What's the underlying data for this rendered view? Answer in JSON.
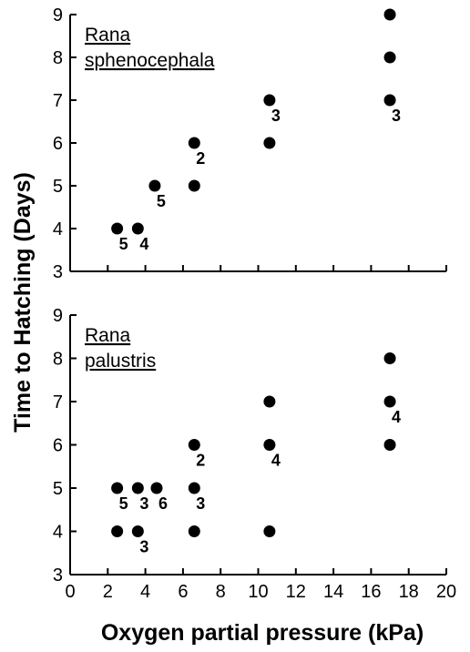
{
  "chart_data": [
    {
      "type": "scatter",
      "species": [
        "Rana",
        "sphenocephala"
      ],
      "xlim": [
        0,
        20
      ],
      "ylim": [
        3,
        9
      ],
      "xticks": [
        0,
        2,
        4,
        6,
        8,
        10,
        12,
        14,
        16,
        18,
        20
      ],
      "yticks": [
        3,
        4,
        5,
        6,
        7,
        8,
        9
      ],
      "show_x_tick_labels": false,
      "points": [
        {
          "x": 2.5,
          "y": 4,
          "n": "5"
        },
        {
          "x": 3.6,
          "y": 4,
          "n": "4"
        },
        {
          "x": 4.5,
          "y": 5,
          "n": "5"
        },
        {
          "x": 6.6,
          "y": 5,
          "n": ""
        },
        {
          "x": 6.6,
          "y": 6,
          "n": "2"
        },
        {
          "x": 10.6,
          "y": 6,
          "n": ""
        },
        {
          "x": 10.6,
          "y": 7,
          "n": "3"
        },
        {
          "x": 17,
          "y": 7,
          "n": "3"
        },
        {
          "x": 17,
          "y": 8,
          "n": ""
        },
        {
          "x": 17,
          "y": 9,
          "n": ""
        }
      ]
    },
    {
      "type": "scatter",
      "species": [
        "Rana",
        "palustris"
      ],
      "xlim": [
        0,
        20
      ],
      "ylim": [
        3,
        9
      ],
      "xticks": [
        0,
        2,
        4,
        6,
        8,
        10,
        12,
        14,
        16,
        18,
        20
      ],
      "yticks": [
        3,
        4,
        5,
        6,
        7,
        8,
        9
      ],
      "show_x_tick_labels": true,
      "points": [
        {
          "x": 2.5,
          "y": 4,
          "n": ""
        },
        {
          "x": 3.6,
          "y": 4,
          "n": "3"
        },
        {
          "x": 2.5,
          "y": 5,
          "n": "5"
        },
        {
          "x": 3.6,
          "y": 5,
          "n": "3"
        },
        {
          "x": 4.6,
          "y": 5,
          "n": "6"
        },
        {
          "x": 6.6,
          "y": 4,
          "n": ""
        },
        {
          "x": 6.6,
          "y": 5,
          "n": "3"
        },
        {
          "x": 6.6,
          "y": 6,
          "n": "2"
        },
        {
          "x": 10.6,
          "y": 4,
          "n": ""
        },
        {
          "x": 10.6,
          "y": 6,
          "n": "4"
        },
        {
          "x": 10.6,
          "y": 7,
          "n": ""
        },
        {
          "x": 17,
          "y": 6,
          "n": ""
        },
        {
          "x": 17,
          "y": 7,
          "n": "4"
        },
        {
          "x": 17,
          "y": 8,
          "n": ""
        }
      ]
    }
  ],
  "ylabel": "Time to Hatching (Days)",
  "xlabel": "Oxygen partial pressure (kPa)"
}
